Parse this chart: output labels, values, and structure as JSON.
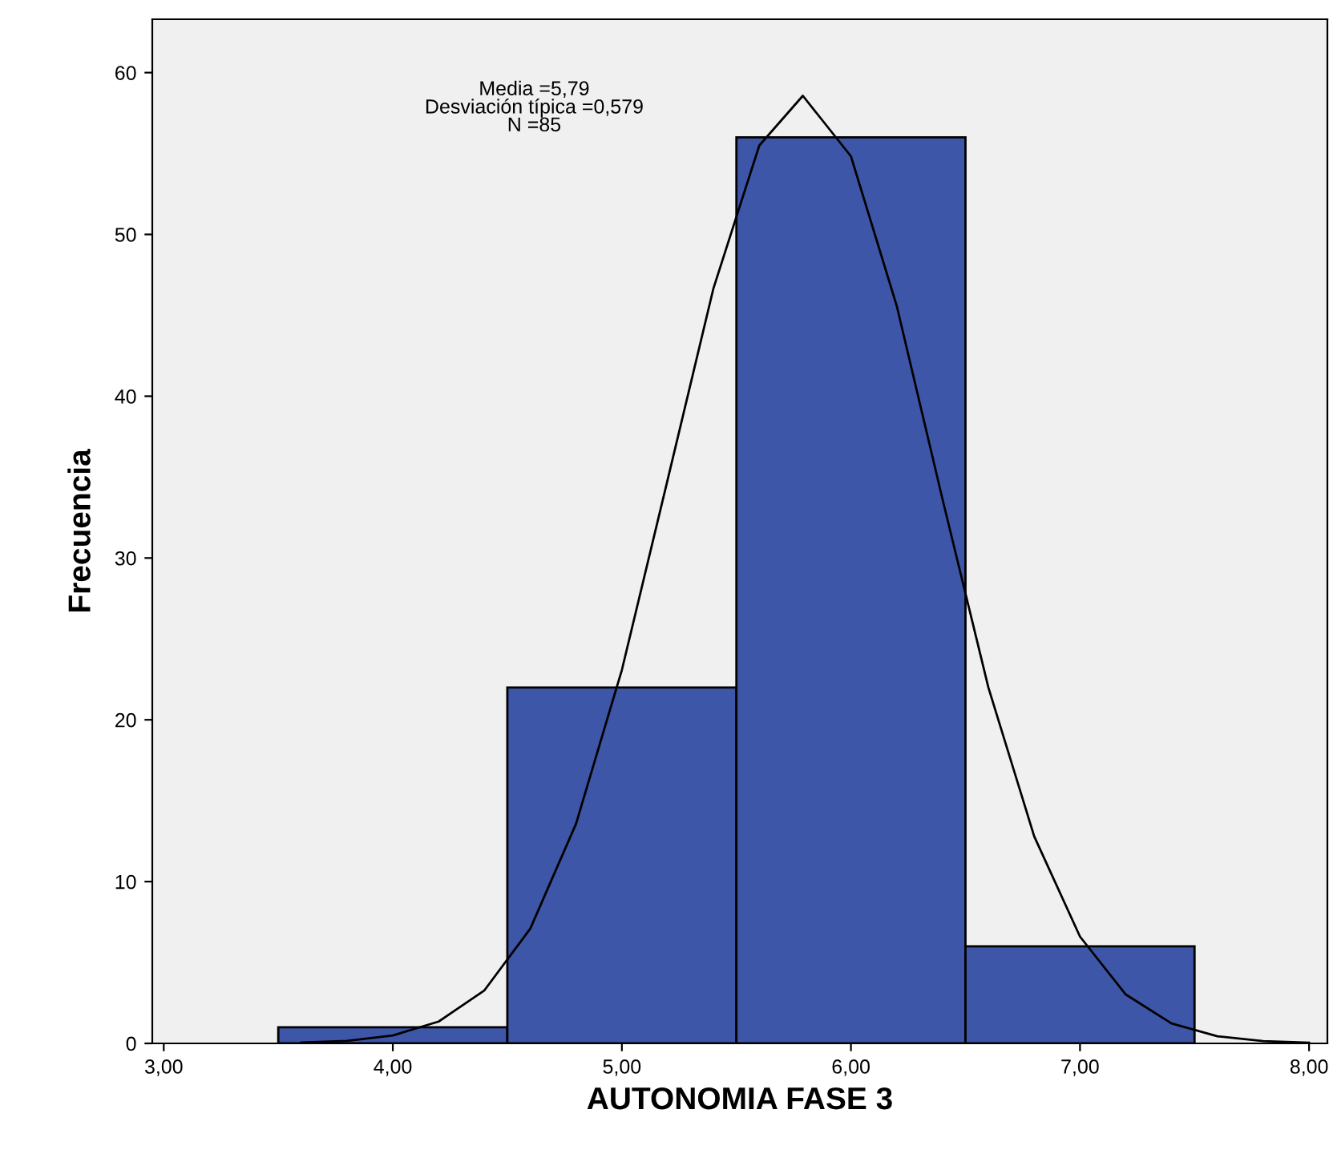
{
  "chart_data": {
    "type": "histogram",
    "xlabel": "AUTONOMIA FASE 3",
    "ylabel": "Frecuencia",
    "bins": [
      3.5,
      4.5,
      5.5,
      6.5,
      7.5
    ],
    "values": [
      1,
      22,
      56,
      6
    ],
    "color": "#3e56a8",
    "series": [
      {
        "type": "line",
        "color": "#000000",
        "x": [
          3.6,
          3.8,
          4.0,
          4.2,
          4.4,
          4.6,
          4.8,
          5.0,
          5.2,
          5.4,
          5.6,
          5.79,
          6.0,
          6.2,
          6.4,
          6.6,
          6.8,
          7.0,
          7.2,
          7.4,
          7.6,
          7.8,
          8.0
        ],
        "values": [
          0.05,
          0.16,
          0.49,
          1.35,
          3.28,
          7.09,
          13.58,
          23.08,
          34.85,
          46.68,
          55.5,
          58.57,
          54.83,
          45.58,
          33.62,
          22.0,
          12.8,
          6.6,
          3.02,
          1.23,
          0.44,
          0.14,
          0.04
        ]
      }
    ],
    "xlim": [
      2.95,
      8.08
    ],
    "ylim": [
      0,
      63.3
    ],
    "xticks": [
      {
        "value": 3,
        "label": "3,00"
      },
      {
        "value": 4,
        "label": "4,00"
      },
      {
        "value": 5,
        "label": "5,00"
      },
      {
        "value": 6,
        "label": "6,00"
      },
      {
        "value": 7,
        "label": "7,00"
      },
      {
        "value": 8,
        "label": "8,00"
      }
    ],
    "yticks": [
      0,
      10,
      20,
      30,
      40,
      50,
      60
    ],
    "annotations": [
      "Media =5,79\nDesviación típica =0,579\nN =85"
    ],
    "grid": false,
    "legend": false
  }
}
